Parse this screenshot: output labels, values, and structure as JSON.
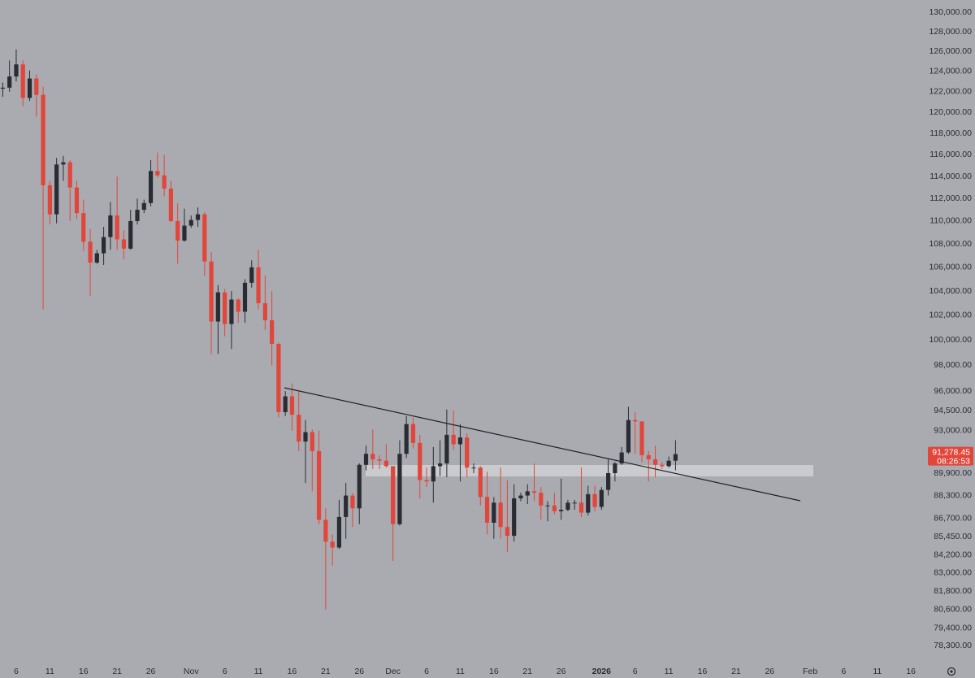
{
  "chart_data": {
    "type": "candlestick",
    "log_scale": true,
    "up_color": "#2a2c33",
    "down_color": "#e2453a",
    "ylim": [
      77400,
      131300
    ],
    "yticks": [
      {
        "value": 130000,
        "label": "130,000.00"
      },
      {
        "value": 128000,
        "label": "128,000.00"
      },
      {
        "value": 126000,
        "label": "126,000.00"
      },
      {
        "value": 124000,
        "label": "124,000.00"
      },
      {
        "value": 122000,
        "label": "122,000.00"
      },
      {
        "value": 120000,
        "label": "120,000.00"
      },
      {
        "value": 118000,
        "label": "118,000.00"
      },
      {
        "value": 116000,
        "label": "116,000.00"
      },
      {
        "value": 114000,
        "label": "114,000.00"
      },
      {
        "value": 112000,
        "label": "112,000.00"
      },
      {
        "value": 110000,
        "label": "110,000.00"
      },
      {
        "value": 108000,
        "label": "108,000.00"
      },
      {
        "value": 106000,
        "label": "106,000.00"
      },
      {
        "value": 104000,
        "label": "104,000.00"
      },
      {
        "value": 102000,
        "label": "102,000.00"
      },
      {
        "value": 100000,
        "label": "100,000.00"
      },
      {
        "value": 98000,
        "label": "98,000.00"
      },
      {
        "value": 96000,
        "label": "96,000.00"
      },
      {
        "value": 94500,
        "label": "94,500.00"
      },
      {
        "value": 93000,
        "label": "93,000.00"
      },
      {
        "value": 89900,
        "label": "89,900.00"
      },
      {
        "value": 88300,
        "label": "88,300.00"
      },
      {
        "value": 86700,
        "label": "86,700.00"
      },
      {
        "value": 85450,
        "label": "85,450.00"
      },
      {
        "value": 84200,
        "label": "84,200.00"
      },
      {
        "value": 83000,
        "label": "83,000.00"
      },
      {
        "value": 81800,
        "label": "81,800.00"
      },
      {
        "value": 80600,
        "label": "80,600.00"
      },
      {
        "value": 79400,
        "label": "79,400.00"
      },
      {
        "value": 78300,
        "label": "78,300.00"
      }
    ],
    "last_price": {
      "value": 91278.45,
      "label": "91,278.45"
    },
    "countdown": "08:26:53",
    "categories": [
      null,
      null,
      "6",
      null,
      null,
      null,
      null,
      "11",
      null,
      null,
      null,
      null,
      "16",
      null,
      null,
      null,
      null,
      "21",
      null,
      null,
      null,
      null,
      "26",
      null,
      null,
      null,
      null,
      null,
      "Nov",
      null,
      null,
      null,
      null,
      "6",
      null,
      null,
      null,
      null,
      "11",
      null,
      null,
      null,
      null,
      "16",
      null,
      null,
      null,
      null,
      "21",
      null,
      null,
      null,
      null,
      "26",
      null,
      null,
      null,
      null,
      "Dec",
      null,
      null,
      null,
      null,
      "6",
      null,
      null,
      null,
      null,
      "11",
      null,
      null,
      null,
      null,
      "16",
      null,
      null,
      null,
      null,
      "21",
      null,
      null,
      null,
      null,
      "26",
      null,
      null,
      null,
      null,
      null,
      "2026",
      null,
      null,
      null,
      null,
      "6",
      null,
      null,
      null,
      null,
      "11",
      null,
      null,
      null,
      null,
      "16",
      null,
      null,
      null,
      null,
      "21",
      null,
      null,
      null,
      null,
      "26",
      null,
      null,
      null,
      null,
      null,
      "Feb",
      null,
      null,
      null,
      null,
      "6",
      null,
      null,
      null,
      null,
      "11",
      null,
      null,
      null,
      null,
      "16",
      null
    ],
    "open": [
      122300,
      122400,
      123500,
      124700,
      121400,
      123300,
      121700,
      113200,
      110600,
      115100,
      115300,
      113000,
      110700,
      108200,
      106400,
      107200,
      108600,
      110500,
      108400,
      107600,
      110000,
      111000,
      111600,
      114500,
      114100,
      112900,
      110000,
      108300,
      109600,
      110100,
      110600,
      106500,
      101500,
      103900,
      101300,
      103300,
      102300,
      104700,
      106000,
      103000,
      101600,
      99700,
      94400,
      95600,
      94200,
      92200,
      92900,
      91500,
      86600,
      85100,
      84700,
      86800,
      88300,
      87400,
      90500,
      91300,
      90900,
      90800,
      90400,
      86300,
      91300,
      93500,
      92100,
      89400,
      89300,
      90400,
      90600,
      92700,
      92000,
      92500,
      90300,
      90300,
      88200,
      86400,
      87800,
      86100,
      85500,
      88100,
      88300,
      88600,
      88500,
      87600,
      87600,
      87200,
      87300,
      87800,
      87800,
      87100,
      88400,
      87500,
      88700,
      89900,
      90600,
      91400,
      93800,
      93700,
      91200,
      90900,
      90500,
      90400,
      90800,
      null,
      null,
      null,
      null,
      null,
      null,
      null,
      null,
      null,
      null,
      null,
      null,
      null,
      null,
      null,
      null,
      null,
      null,
      null,
      null,
      null,
      null,
      null,
      null,
      null,
      null,
      null,
      null,
      null,
      null,
      null,
      null,
      null,
      null,
      null,
      null
    ],
    "high": [
      122900,
      125100,
      126200,
      125100,
      124100,
      123700,
      122500,
      113600,
      115700,
      115900,
      115500,
      113600,
      111900,
      109300,
      107500,
      109500,
      111700,
      114000,
      109200,
      111000,
      112000,
      111900,
      115500,
      116200,
      116000,
      113600,
      111600,
      111100,
      110500,
      111200,
      110800,
      107300,
      104500,
      104200,
      104000,
      103400,
      105000,
      106600,
      107500,
      105300,
      104000,
      99800,
      96000,
      96600,
      96000,
      93800,
      93100,
      93000,
      87400,
      85600,
      88000,
      89200,
      88500,
      90600,
      91900,
      93100,
      91200,
      92000,
      90400,
      92300,
      94100,
      94000,
      92700,
      90300,
      91800,
      92300,
      94600,
      94500,
      93500,
      92800,
      90600,
      90400,
      90000,
      88200,
      90300,
      89400,
      89100,
      88500,
      89100,
      90600,
      88900,
      87900,
      88500,
      89500,
      88000,
      88000,
      90300,
      89000,
      89000,
      88900,
      90900,
      90700,
      91800,
      94800,
      94400,
      93700,
      91500,
      91900,
      90700,
      91100,
      92300,
      null,
      null,
      null,
      null,
      null,
      null,
      null,
      null,
      null,
      null,
      null,
      null,
      null,
      null,
      null,
      null,
      null,
      null,
      null,
      null,
      null,
      null,
      null,
      null,
      null,
      null,
      null,
      null,
      null,
      null,
      null,
      null,
      null,
      null,
      null,
      null
    ],
    "low": [
      121500,
      122000,
      123000,
      120600,
      121100,
      119600,
      102500,
      109700,
      109800,
      113600,
      110000,
      110200,
      107400,
      103600,
      106300,
      106200,
      107500,
      107500,
      106700,
      107500,
      109700,
      110700,
      111300,
      113900,
      112200,
      109900,
      106300,
      108200,
      109400,
      109500,
      105300,
      98900,
      98900,
      100300,
      99300,
      101400,
      101400,
      104300,
      102500,
      100800,
      98000,
      94000,
      94100,
      93000,
      91500,
      89200,
      88600,
      86300,
      80600,
      83500,
      84600,
      85300,
      86100,
      86300,
      90100,
      90200,
      90200,
      90300,
      83800,
      86200,
      91000,
      91700,
      88100,
      88900,
      87800,
      89700,
      89600,
      91600,
      89300,
      89600,
      89900,
      87600,
      85600,
      85300,
      85300,
      84400,
      85100,
      87900,
      87700,
      87900,
      86600,
      86500,
      87000,
      86600,
      87200,
      87300,
      86800,
      86900,
      87200,
      87300,
      88300,
      89300,
      90500,
      91300,
      91300,
      90700,
      89300,
      89600,
      90200,
      90300,
      90100,
      null,
      null,
      null,
      null,
      null,
      null,
      null,
      null,
      null,
      null,
      null,
      null,
      null,
      null,
      null,
      null,
      null,
      null,
      null,
      null,
      null,
      null,
      null,
      null,
      null,
      null,
      null,
      null,
      null,
      null,
      null,
      null,
      null,
      null,
      null,
      null
    ],
    "close": [
      122400,
      123500,
      124700,
      121400,
      123300,
      121700,
      113200,
      110600,
      115100,
      115300,
      113000,
      110700,
      108200,
      106400,
      107200,
      108600,
      110500,
      108400,
      107600,
      110000,
      111000,
      111600,
      114500,
      114100,
      112900,
      110000,
      108300,
      109600,
      110100,
      110600,
      106500,
      101500,
      103900,
      101300,
      103300,
      102300,
      104700,
      106000,
      103000,
      101600,
      99700,
      94400,
      95600,
      94200,
      92200,
      92900,
      91500,
      86600,
      85100,
      84700,
      86800,
      88300,
      87400,
      90500,
      91300,
      90900,
      90800,
      90400,
      86300,
      91300,
      93500,
      92100,
      89400,
      89300,
      90400,
      90600,
      92700,
      92000,
      92500,
      90300,
      90300,
      88200,
      86400,
      87800,
      86100,
      85500,
      88100,
      88300,
      88600,
      88500,
      87600,
      87600,
      87200,
      87300,
      87800,
      87800,
      87100,
      88400,
      87500,
      88700,
      89900,
      90600,
      91400,
      93800,
      93700,
      91200,
      90900,
      90500,
      90400,
      90800,
      91278.45,
      null,
      null,
      null,
      null,
      null,
      null,
      null,
      null,
      null,
      null,
      null,
      null,
      null,
      null,
      null,
      null,
      null,
      null,
      null,
      null,
      null,
      null,
      null,
      null,
      null,
      null,
      null,
      null,
      null,
      null,
      null,
      null,
      null,
      null,
      null,
      null
    ]
  }
}
